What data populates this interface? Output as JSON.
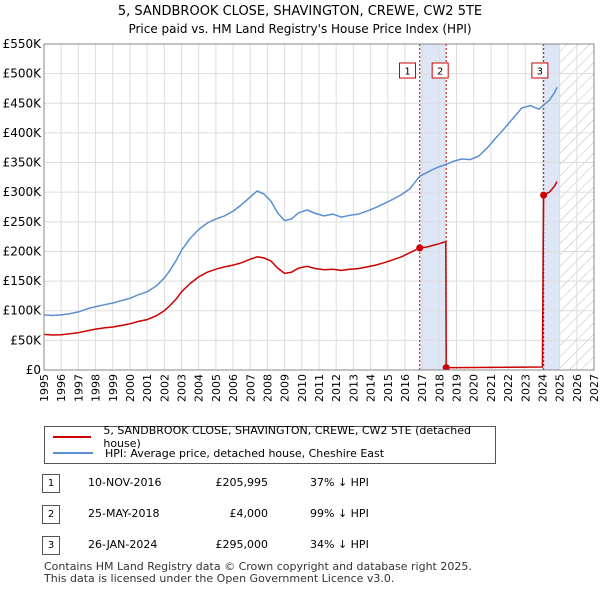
{
  "chart_data": {
    "type": "line",
    "title": "5, SANDBROOK CLOSE, SHAVINGTON, CREWE, CW2 5TE",
    "subtitle": "Price paid vs. HM Land Registry's House Price Index (HPI)",
    "xlim": [
      1995,
      2027
    ],
    "ylim": [
      0,
      550000
    ],
    "x_ticks": [
      "1995",
      "1996",
      "1997",
      "1998",
      "1999",
      "2000",
      "2001",
      "2002",
      "2003",
      "2004",
      "2005",
      "2006",
      "2007",
      "2008",
      "2009",
      "2010",
      "2011",
      "2012",
      "2013",
      "2014",
      "2015",
      "2016",
      "2017",
      "2018",
      "2019",
      "2020",
      "2021",
      "2022",
      "2023",
      "2024",
      "2025",
      "2026",
      "2027"
    ],
    "y_ticks": [
      {
        "value": 0,
        "label": "£0"
      },
      {
        "value": 50000,
        "label": "£50K"
      },
      {
        "value": 100000,
        "label": "£100K"
      },
      {
        "value": 150000,
        "label": "£150K"
      },
      {
        "value": 200000,
        "label": "£200K"
      },
      {
        "value": 250000,
        "label": "£250K"
      },
      {
        "value": 300000,
        "label": "£300K"
      },
      {
        "value": 350000,
        "label": "£350K"
      },
      {
        "value": 400000,
        "label": "£400K"
      },
      {
        "value": 450000,
        "label": "£450K"
      },
      {
        "value": 500000,
        "label": "£500K"
      },
      {
        "value": 550000,
        "label": "£550K"
      }
    ],
    "future_hatch_from": 2025.0,
    "colors": {
      "price": "#cc0000",
      "hpi": "#5b8fd2",
      "vline": "#cc0000",
      "band": "#dde6f5",
      "hatch": "#bbbbbb",
      "grid": "#dddddd"
    },
    "series": [
      {
        "name": "5, SANDBROOK CLOSE, SHAVINGTON, CREWE, CW2 5TE (detached house)",
        "color": "#cc0000",
        "points": [
          [
            1995.0,
            60000
          ],
          [
            1995.5,
            59000
          ],
          [
            1996.0,
            59500
          ],
          [
            1996.5,
            61000
          ],
          [
            1997.0,
            63000
          ],
          [
            1997.5,
            66000
          ],
          [
            1998.0,
            69000
          ],
          [
            1998.5,
            71000
          ],
          [
            1999.0,
            72500
          ],
          [
            1999.5,
            75000
          ],
          [
            2000.0,
            78000
          ],
          [
            2000.5,
            82000
          ],
          [
            2001.0,
            85000
          ],
          [
            2001.5,
            91000
          ],
          [
            2002.0,
            100000
          ],
          [
            2002.3,
            108000
          ],
          [
            2002.7,
            120000
          ],
          [
            2003.0,
            132000
          ],
          [
            2003.5,
            146000
          ],
          [
            2004.0,
            157000
          ],
          [
            2004.5,
            165000
          ],
          [
            2005.0,
            170000
          ],
          [
            2005.5,
            174000
          ],
          [
            2006.0,
            177000
          ],
          [
            2006.5,
            181000
          ],
          [
            2007.0,
            187000
          ],
          [
            2007.4,
            191000
          ],
          [
            2007.8,
            189000
          ],
          [
            2008.2,
            184000
          ],
          [
            2008.6,
            172000
          ],
          [
            2009.0,
            163000
          ],
          [
            2009.4,
            165000
          ],
          [
            2009.8,
            172000
          ],
          [
            2010.3,
            175000
          ],
          [
            2010.8,
            171000
          ],
          [
            2011.3,
            169000
          ],
          [
            2011.8,
            170000
          ],
          [
            2012.3,
            168000
          ],
          [
            2012.8,
            170000
          ],
          [
            2013.3,
            171000
          ],
          [
            2013.8,
            174000
          ],
          [
            2014.3,
            177000
          ],
          [
            2014.8,
            181000
          ],
          [
            2015.3,
            186000
          ],
          [
            2015.8,
            191000
          ],
          [
            2016.3,
            198000
          ],
          [
            2016.86,
            205995
          ],
          [
            2017.2,
            207000
          ],
          [
            2017.6,
            210000
          ],
          [
            2018.0,
            213000
          ],
          [
            2018.3,
            216000
          ],
          [
            2018.38,
            216000
          ],
          [
            2018.4,
            4000
          ],
          [
            2019.0,
            4100
          ],
          [
            2020.0,
            4200
          ],
          [
            2021.0,
            4400
          ],
          [
            2022.0,
            4700
          ],
          [
            2023.0,
            4900
          ],
          [
            2024.0,
            5000
          ],
          [
            2024.07,
            295000
          ],
          [
            2024.4,
            300000
          ],
          [
            2024.7,
            310000
          ],
          [
            2024.85,
            318000
          ]
        ]
      },
      {
        "name": "HPI: Average price, detached house, Cheshire East",
        "color": "#5b8fd2",
        "points": [
          [
            1995.0,
            93000
          ],
          [
            1995.5,
            92000
          ],
          [
            1996.0,
            93000
          ],
          [
            1996.5,
            95000
          ],
          [
            1997.0,
            98000
          ],
          [
            1997.5,
            103000
          ],
          [
            1998.0,
            107000
          ],
          [
            1998.5,
            110000
          ],
          [
            1999.0,
            113000
          ],
          [
            1999.5,
            117000
          ],
          [
            2000.0,
            121000
          ],
          [
            2000.5,
            127000
          ],
          [
            2001.0,
            132000
          ],
          [
            2001.5,
            141000
          ],
          [
            2002.0,
            155000
          ],
          [
            2002.3,
            167000
          ],
          [
            2002.7,
            185000
          ],
          [
            2003.0,
            202000
          ],
          [
            2003.5,
            222000
          ],
          [
            2004.0,
            237000
          ],
          [
            2004.5,
            248000
          ],
          [
            2005.0,
            255000
          ],
          [
            2005.5,
            260000
          ],
          [
            2006.0,
            268000
          ],
          [
            2006.5,
            279000
          ],
          [
            2007.0,
            292000
          ],
          [
            2007.4,
            302000
          ],
          [
            2007.8,
            297000
          ],
          [
            2008.2,
            285000
          ],
          [
            2008.6,
            265000
          ],
          [
            2009.0,
            252000
          ],
          [
            2009.4,
            255000
          ],
          [
            2009.8,
            265000
          ],
          [
            2010.3,
            270000
          ],
          [
            2010.8,
            264000
          ],
          [
            2011.3,
            260000
          ],
          [
            2011.8,
            263000
          ],
          [
            2012.3,
            258000
          ],
          [
            2012.8,
            261000
          ],
          [
            2013.3,
            263000
          ],
          [
            2013.8,
            268000
          ],
          [
            2014.3,
            274000
          ],
          [
            2014.8,
            281000
          ],
          [
            2015.3,
            288000
          ],
          [
            2015.8,
            296000
          ],
          [
            2016.3,
            306000
          ],
          [
            2016.86,
            327000
          ],
          [
            2017.2,
            332000
          ],
          [
            2017.6,
            338000
          ],
          [
            2018.0,
            343000
          ],
          [
            2018.4,
            347000
          ],
          [
            2018.8,
            352000
          ],
          [
            2019.3,
            356000
          ],
          [
            2019.8,
            355000
          ],
          [
            2020.3,
            361000
          ],
          [
            2020.8,
            375000
          ],
          [
            2021.3,
            392000
          ],
          [
            2021.8,
            408000
          ],
          [
            2022.3,
            425000
          ],
          [
            2022.8,
            442000
          ],
          [
            2023.3,
            446000
          ],
          [
            2023.8,
            440000
          ],
          [
            2024.07,
            447000
          ],
          [
            2024.4,
            455000
          ],
          [
            2024.7,
            468000
          ],
          [
            2024.85,
            477000
          ]
        ]
      }
    ],
    "annotations": [
      {
        "label": "1",
        "x": 2016.86,
        "y": 205995
      },
      {
        "label": "2",
        "x": 2018.4,
        "y": 4000
      },
      {
        "label": "3",
        "x": 2024.07,
        "y": 295000
      }
    ]
  },
  "legend": {
    "price_label": "5, SANDBROOK CLOSE, SHAVINGTON, CREWE, CW2 5TE (detached house)",
    "hpi_label": "HPI: Average price, detached house, Cheshire East"
  },
  "transactions": [
    {
      "num": "1",
      "date": "10-NOV-2016",
      "price": "£205,995",
      "hpi": "37% ↓ HPI"
    },
    {
      "num": "2",
      "date": "25-MAY-2018",
      "price": "£4,000",
      "hpi": "99% ↓ HPI"
    },
    {
      "num": "3",
      "date": "26-JAN-2024",
      "price": "£295,000",
      "hpi": "34% ↓ HPI"
    }
  ],
  "footer": {
    "line1": "Contains HM Land Registry data © Crown copyright and database right 2025.",
    "line2": "This data is licensed under the Open Government Licence v3.0."
  }
}
